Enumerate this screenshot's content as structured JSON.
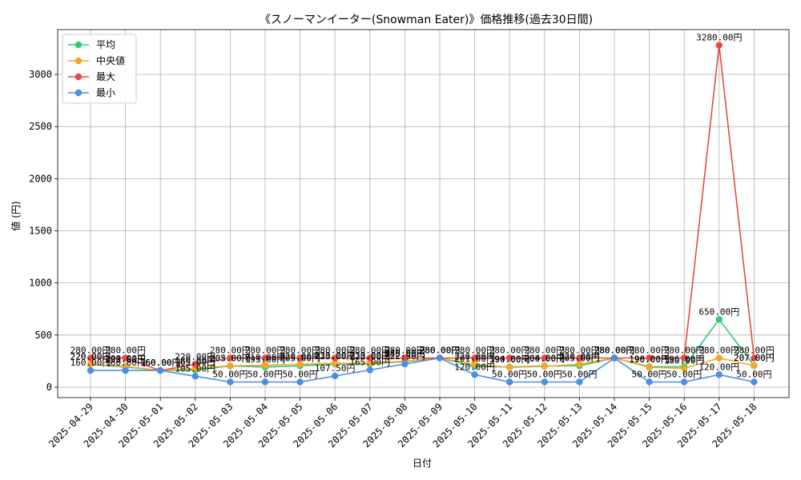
{
  "chart_data": {
    "type": "line",
    "title": "《スノーマンイーター(Snowman Eater)》価格推移(過去30日間)",
    "xlabel": "日付",
    "ylabel": "値 (円)",
    "ylim": [
      -100,
      3430
    ],
    "yticks": [
      0,
      500,
      1000,
      1500,
      2000,
      2500,
      3000
    ],
    "grid": true,
    "legend_position": "top-left",
    "value_suffix": "円",
    "categories": [
      "2025-04-29",
      "2025-04-30",
      "2025-05-01",
      "2025-05-02",
      "2025-05-03",
      "2025-05-04",
      "2025-05-05",
      "2025-05-06",
      "2025-05-07",
      "2025-05-08",
      "2025-05-09",
      "2025-05-10",
      "2025-05-11",
      "2025-05-12",
      "2025-05-13",
      "2025-05-14",
      "2025-05-15",
      "2025-05-16",
      "2025-05-17",
      "2025-05-18"
    ],
    "series": [
      {
        "name": "平均",
        "color": "#2ecc71",
        "values": [
          220,
          193,
          160,
          165,
          203,
          193,
          205,
          223,
          223,
          245,
          280,
          201,
          194,
          204,
          205,
          280,
          196,
          196,
          650,
          207
        ]
      },
      {
        "name": "中央値",
        "color": "#f5a623",
        "values": [
          220,
          200,
          160,
          180,
          205,
          210,
          220,
          230,
          230,
          250,
          280,
          220,
          190,
          200,
          220,
          280,
          190,
          180,
          280,
          207
        ]
      },
      {
        "name": "最大",
        "color": "#e84a4a",
        "values": [
          280,
          280,
          160,
          220,
          280,
          280,
          280,
          280,
          280,
          280,
          280,
          280,
          280,
          280,
          280,
          280,
          280,
          280,
          3280,
          280
        ]
      },
      {
        "name": "最小",
        "color": "#4a90e2",
        "values": [
          160,
          160,
          160,
          105,
          50,
          50,
          50,
          107.5,
          165,
          222.5,
          280,
          120,
          50,
          50,
          50,
          280,
          50,
          50,
          120,
          50
        ]
      }
    ]
  }
}
